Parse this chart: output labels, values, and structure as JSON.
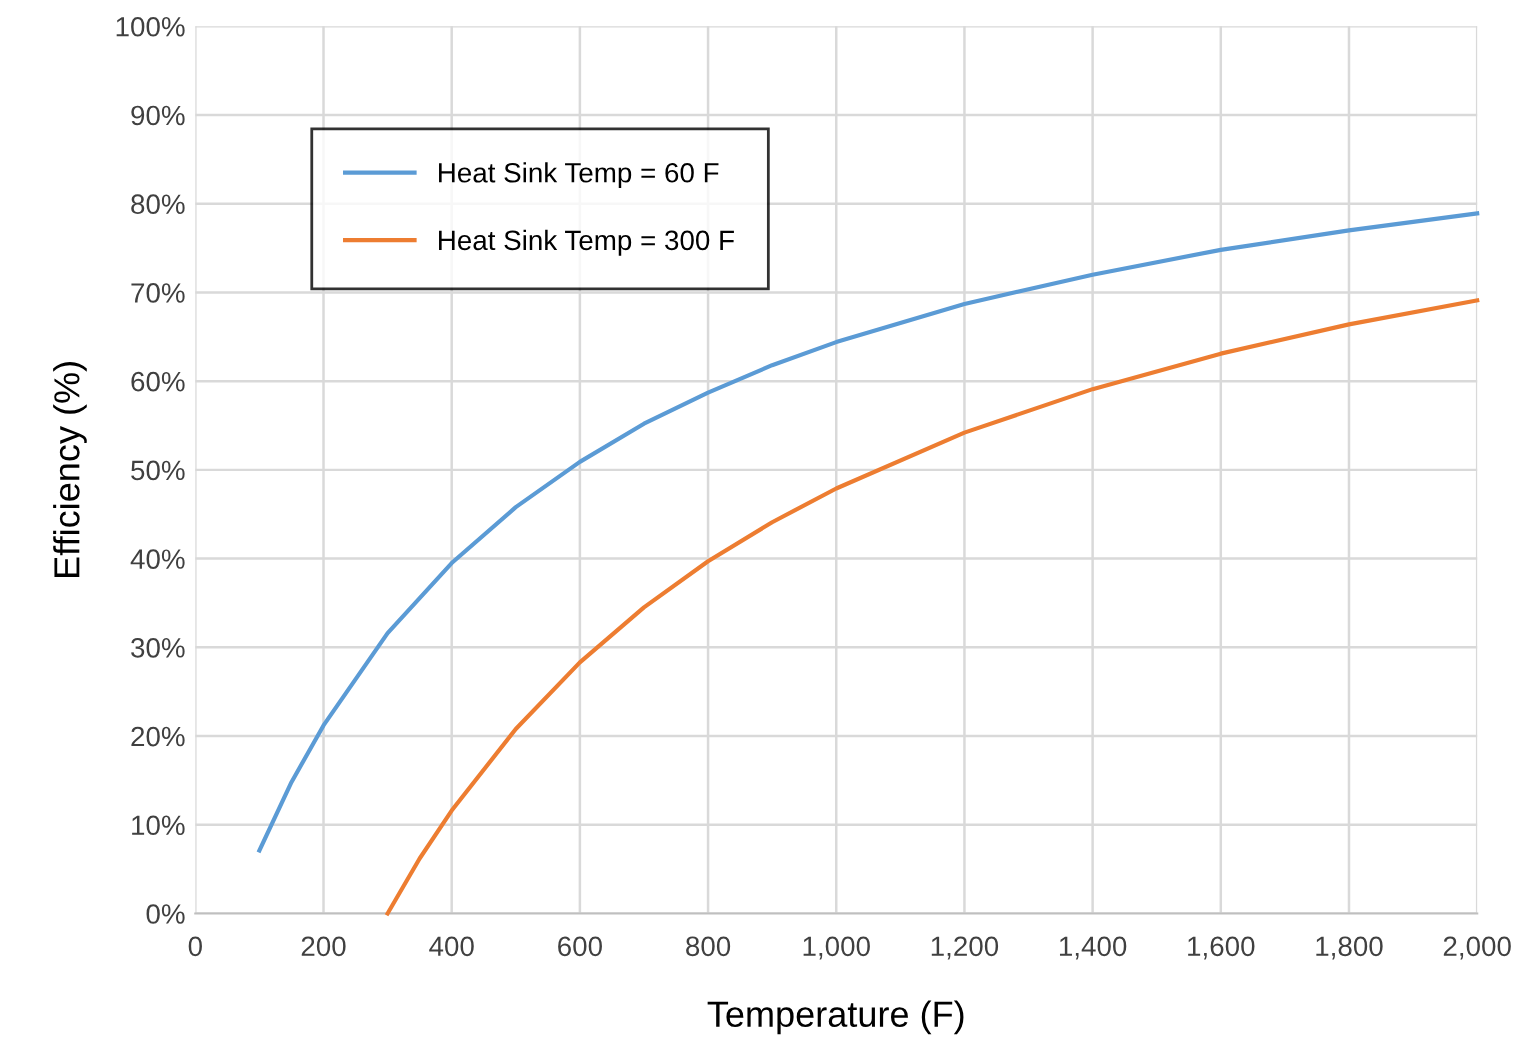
{
  "chart_data": {
    "type": "line",
    "xlabel": "Temperature (F)",
    "ylabel": "Efficiency (%)",
    "series": [
      {
        "name": "Heat Sink Temp = 60 F",
        "color": "#5b9bd5",
        "x": [
          100,
          150,
          200,
          300,
          400,
          500,
          600,
          700,
          800,
          900,
          1000,
          1200,
          1400,
          1600,
          1800,
          2000
        ],
        "values": [
          7.1,
          14.8,
          21.2,
          31.6,
          39.5,
          45.8,
          50.9,
          55.2,
          58.7,
          61.8,
          64.4,
          68.7,
          72.0,
          74.8,
          77.0,
          78.9
        ]
      },
      {
        "name": "Heat Sink Temp = 300 F",
        "color": "#ed7d31",
        "x": [
          300,
          350,
          400,
          500,
          600,
          700,
          800,
          900,
          1000,
          1200,
          1400,
          1600,
          1800,
          2000
        ],
        "values": [
          0,
          6.2,
          11.6,
          20.8,
          28.3,
          34.5,
          39.7,
          44.1,
          47.9,
          54.2,
          59.1,
          63.1,
          66.4,
          69.1
        ]
      }
    ],
    "xlim": [
      0,
      2000
    ],
    "xticks": [
      0,
      200,
      400,
      600,
      800,
      {
        "value": 1000,
        "label": "1,000"
      },
      {
        "value": 1200,
        "label": "1,200"
      },
      {
        "value": 1400,
        "label": "1,400"
      },
      {
        "value": 1600,
        "label": "1,600"
      },
      {
        "value": 1800,
        "label": "1,800"
      },
      {
        "value": 2000,
        "label": "2,000"
      }
    ],
    "ylim": [
      0,
      100
    ],
    "yticks": [
      {
        "value": 0,
        "label": "0%"
      },
      {
        "value": 10,
        "label": "10%"
      },
      {
        "value": 20,
        "label": "20%"
      },
      {
        "value": 30,
        "label": "30%"
      },
      {
        "value": 40,
        "label": "40%"
      },
      {
        "value": 50,
        "label": "50%"
      },
      {
        "value": 60,
        "label": "60%"
      },
      {
        "value": 70,
        "label": "70%"
      },
      {
        "value": 80,
        "label": "80%"
      },
      {
        "value": 90,
        "label": "90%"
      },
      {
        "value": 100,
        "label": "100%"
      }
    ],
    "grid": true,
    "legend": "top left",
    "marker": "none",
    "line_style": "solid"
  }
}
